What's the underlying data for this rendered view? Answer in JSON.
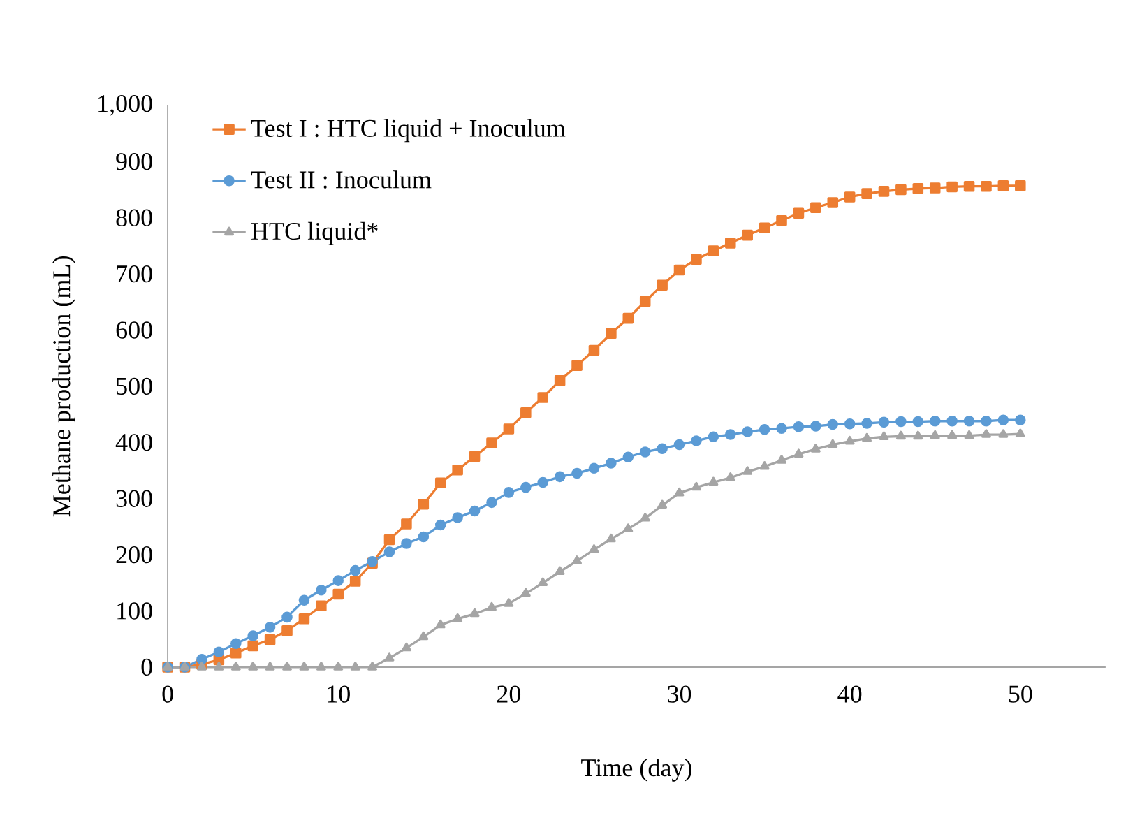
{
  "chart_data": {
    "type": "line",
    "xlabel": "Time (day)",
    "ylabel": "Methane production (mL)",
    "x": [
      0,
      1,
      2,
      3,
      4,
      5,
      6,
      7,
      8,
      9,
      10,
      11,
      12,
      13,
      14,
      15,
      16,
      17,
      18,
      19,
      20,
      21,
      22,
      23,
      24,
      25,
      26,
      27,
      28,
      29,
      30,
      31,
      32,
      33,
      34,
      35,
      36,
      37,
      38,
      39,
      40,
      41,
      42,
      43,
      44,
      45,
      46,
      47,
      48,
      49,
      50
    ],
    "xlim": [
      0,
      55
    ],
    "xticks": [
      0,
      10,
      20,
      30,
      40,
      50
    ],
    "ylim": [
      0,
      1000
    ],
    "yticks": [
      0,
      100,
      200,
      300,
      400,
      500,
      600,
      700,
      800,
      900,
      {
        "value": 1000,
        "label": "1,000"
      }
    ],
    "grid": false,
    "legend": "top left",
    "series": [
      {
        "name": "Test I : HTC liquid + Inoculum",
        "color": "#ed7d31",
        "marker": "square",
        "values": [
          0,
          0,
          5,
          13,
          25,
          38,
          49,
          65,
          86,
          109,
          130,
          153,
          185,
          227,
          255,
          290,
          328,
          351,
          375,
          399,
          424,
          453,
          480,
          510,
          537,
          564,
          594,
          621,
          651,
          680,
          707,
          726,
          741,
          755,
          769,
          782,
          795,
          808,
          818,
          827,
          837,
          843,
          847,
          850,
          852,
          853,
          855,
          856,
          856,
          857,
          857
        ]
      },
      {
        "name": "Test II : Inoculum",
        "color": "#5b9bd5",
        "marker": "circle",
        "values": [
          0,
          0,
          14,
          27,
          42,
          56,
          71,
          89,
          119,
          137,
          154,
          172,
          188,
          205,
          220,
          232,
          253,
          266,
          278,
          293,
          311,
          320,
          329,
          339,
          345,
          354,
          363,
          374,
          383,
          389,
          396,
          403,
          410,
          414,
          419,
          423,
          425,
          428,
          429,
          432,
          433,
          434,
          436,
          437,
          437,
          438,
          438,
          438,
          438,
          440,
          440
        ]
      },
      {
        "name": "HTC liquid*",
        "color": "#a5a5a5",
        "marker": "triangle",
        "values": [
          0,
          0,
          0,
          0,
          0,
          0,
          0,
          0,
          0,
          0,
          0,
          0,
          0,
          16,
          34,
          54,
          75,
          86,
          95,
          106,
          113,
          131,
          150,
          170,
          189,
          209,
          228,
          246,
          265,
          288,
          310,
          320,
          329,
          337,
          348,
          357,
          368,
          379,
          388,
          396,
          402,
          407,
          410,
          411,
          411,
          412,
          412,
          412,
          414,
          414,
          415
        ]
      }
    ]
  }
}
